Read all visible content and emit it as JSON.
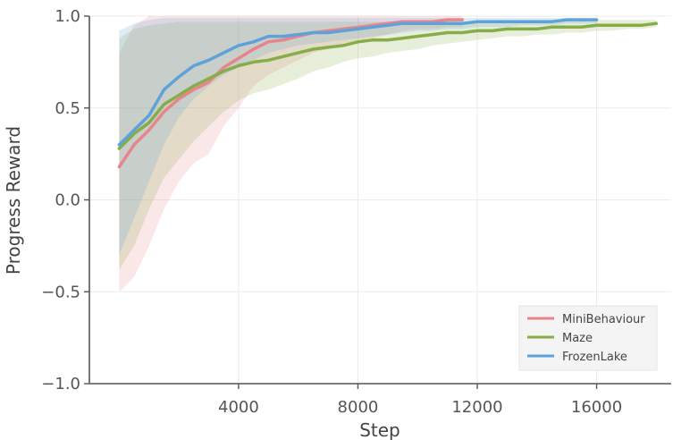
{
  "chart_data": {
    "type": "line",
    "title": "",
    "xlabel": "Step",
    "ylabel": "Progress Reward",
    "xlim": [
      -1000,
      18500
    ],
    "ylim": [
      -1.0,
      1.0
    ],
    "x_ticks": [
      4000,
      8000,
      12000,
      16000
    ],
    "x_tick_labels": [
      "4000",
      "8000",
      "12000",
      "16000"
    ],
    "y_ticks": [
      -1.0,
      -0.5,
      0.0,
      0.5,
      1.0
    ],
    "y_tick_labels": [
      "−1.0",
      "−0.5",
      "0.0",
      "0.5",
      "1.0"
    ],
    "grid": true,
    "legend_position": "lower-right",
    "series": [
      {
        "name": "MiniBehaviour",
        "color": "#e8858a",
        "x": [
          0,
          500,
          1000,
          1500,
          2000,
          2500,
          3000,
          3500,
          4000,
          4500,
          5000,
          5500,
          6000,
          6500,
          7000,
          7500,
          8000,
          8500,
          9000,
          9500,
          10000,
          10500,
          11000,
          11500
        ],
        "y": [
          0.18,
          0.3,
          0.38,
          0.48,
          0.55,
          0.6,
          0.64,
          0.72,
          0.77,
          0.82,
          0.86,
          0.87,
          0.89,
          0.91,
          0.92,
          0.93,
          0.94,
          0.95,
          0.96,
          0.97,
          0.97,
          0.97,
          0.98,
          0.98
        ],
        "upper": [
          0.8,
          0.95,
          1.0,
          1.0,
          1.0,
          1.0,
          1.0,
          1.0,
          1.0,
          1.0,
          1.0,
          1.0,
          1.0,
          1.0,
          1.0,
          1.0,
          1.0,
          1.0,
          1.0,
          1.0,
          1.0,
          1.0,
          1.0,
          1.0
        ],
        "lower": [
          -0.5,
          -0.42,
          -0.25,
          -0.05,
          0.1,
          0.2,
          0.25,
          0.4,
          0.5,
          0.62,
          0.68,
          0.72,
          0.76,
          0.8,
          0.82,
          0.85,
          0.87,
          0.88,
          0.9,
          0.92,
          0.93,
          0.93,
          0.94,
          0.94
        ]
      },
      {
        "name": "Maze",
        "color": "#86ad48",
        "x": [
          0,
          500,
          1000,
          1500,
          2000,
          2500,
          3000,
          3500,
          4000,
          4500,
          5000,
          5500,
          6000,
          6500,
          7000,
          7500,
          8000,
          8500,
          9000,
          9500,
          10000,
          10500,
          11000,
          11500,
          12000,
          12500,
          13000,
          13500,
          14000,
          14500,
          15000,
          15500,
          16000,
          16500,
          17000,
          17500,
          18000
        ],
        "y": [
          0.28,
          0.36,
          0.42,
          0.52,
          0.57,
          0.62,
          0.66,
          0.7,
          0.73,
          0.75,
          0.76,
          0.78,
          0.8,
          0.82,
          0.83,
          0.84,
          0.86,
          0.87,
          0.87,
          0.88,
          0.89,
          0.9,
          0.91,
          0.91,
          0.92,
          0.92,
          0.93,
          0.93,
          0.93,
          0.94,
          0.94,
          0.94,
          0.95,
          0.95,
          0.95,
          0.95,
          0.96
        ],
        "upper": [
          0.88,
          0.93,
          0.95,
          0.96,
          0.97,
          0.97,
          0.97,
          0.97,
          0.97,
          0.97,
          0.97,
          0.97,
          0.97,
          0.97,
          0.97,
          0.97,
          0.97,
          0.97,
          0.97,
          0.97,
          0.97,
          0.97,
          0.97,
          0.97,
          0.97,
          0.98,
          0.98,
          0.98,
          0.98,
          0.98,
          0.98,
          0.98,
          0.98,
          0.98,
          0.98,
          0.98,
          0.98
        ],
        "lower": [
          -0.38,
          -0.25,
          -0.05,
          0.12,
          0.22,
          0.32,
          0.4,
          0.48,
          0.54,
          0.58,
          0.6,
          0.63,
          0.66,
          0.7,
          0.72,
          0.75,
          0.77,
          0.78,
          0.8,
          0.81,
          0.82,
          0.84,
          0.85,
          0.86,
          0.87,
          0.88,
          0.89,
          0.89,
          0.9,
          0.9,
          0.91,
          0.91,
          0.92,
          0.92,
          0.93,
          0.93,
          0.94
        ]
      },
      {
        "name": "FrozenLake",
        "color": "#5fa2d9",
        "x": [
          0,
          500,
          1000,
          1500,
          2000,
          2500,
          3000,
          3500,
          4000,
          4500,
          5000,
          5500,
          6000,
          6500,
          7000,
          7500,
          8000,
          8500,
          9000,
          9500,
          10000,
          10500,
          11000,
          11500,
          12000,
          12500,
          13000,
          13500,
          14000,
          14500,
          15000,
          15500,
          16000
        ],
        "y": [
          0.3,
          0.38,
          0.46,
          0.6,
          0.67,
          0.73,
          0.76,
          0.8,
          0.84,
          0.86,
          0.89,
          0.89,
          0.9,
          0.91,
          0.91,
          0.92,
          0.93,
          0.94,
          0.95,
          0.96,
          0.96,
          0.96,
          0.96,
          0.96,
          0.97,
          0.97,
          0.97,
          0.97,
          0.97,
          0.97,
          0.98,
          0.98,
          0.98
        ],
        "upper": [
          0.92,
          0.96,
          0.98,
          0.99,
          0.99,
          0.99,
          0.99,
          0.99,
          0.99,
          0.99,
          0.99,
          0.99,
          0.99,
          0.99,
          0.99,
          0.99,
          0.99,
          0.99,
          0.99,
          0.99,
          0.99,
          0.99,
          0.99,
          0.99,
          0.99,
          0.99,
          0.99,
          0.99,
          0.99,
          0.99,
          0.99,
          0.99,
          0.99
        ],
        "lower": [
          -0.3,
          -0.1,
          0.1,
          0.3,
          0.45,
          0.55,
          0.62,
          0.68,
          0.72,
          0.76,
          0.8,
          0.82,
          0.84,
          0.85,
          0.86,
          0.87,
          0.88,
          0.89,
          0.9,
          0.91,
          0.92,
          0.92,
          0.93,
          0.93,
          0.94,
          0.94,
          0.94,
          0.95,
          0.95,
          0.95,
          0.96,
          0.96,
          0.96
        ]
      }
    ]
  }
}
